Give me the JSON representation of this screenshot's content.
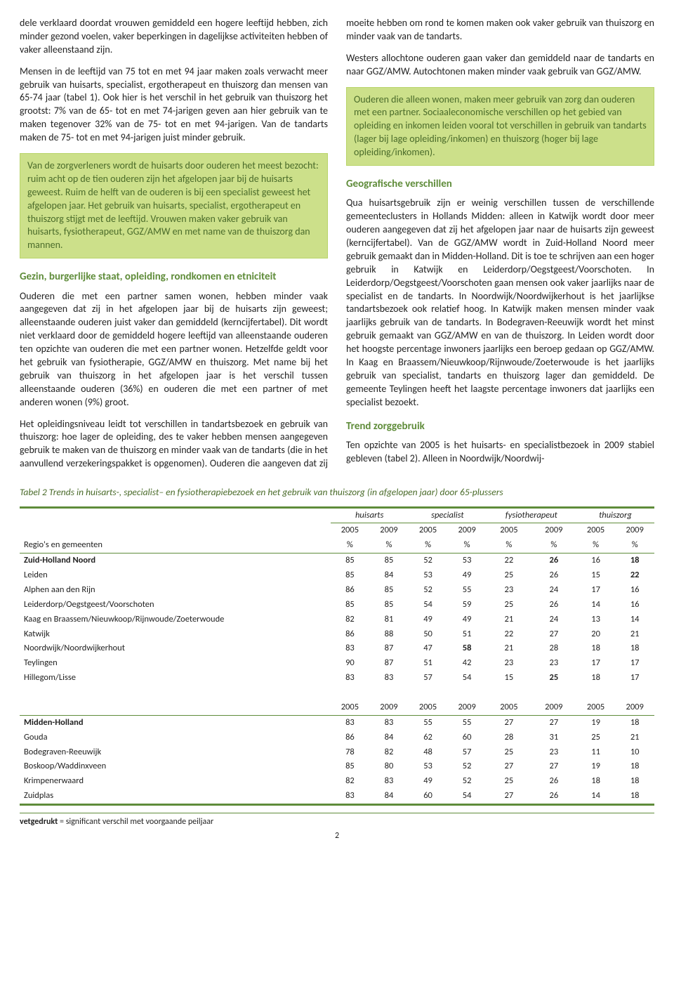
{
  "paragraphs": {
    "p0": "dele verklaard doordat vrouwen gemiddeld een hogere leeftijd hebben, zich minder gezond voelen, vaker beperkingen in dagelijkse activiteiten hebben of vaker alleenstaand zijn.",
    "p1": "Mensen in de leeftijd van 75 tot en met 94 jaar maken zoals verwacht meer gebruik van huisarts, specialist, ergotherapeut en thuiszorg dan mensen van 65-74 jaar (tabel 1). Ook hier is het verschil in het gebruik van thuiszorg het grootst: 7% van de 65- tot en met 74-jarigen geven aan hier gebruik van te maken tegenover 32% van de 75- tot en met 94-jarigen. Van de tandarts maken de 75- tot en met 94-jarigen juist minder gebruik.",
    "callout1": "Van de zorgverleners wordt de huisarts door ouderen het meest bezocht: ruim acht op de tien ouderen zijn het afgelopen jaar bij de huisarts geweest. Ruim de helft van de ouderen is bij een specialist geweest het afgelopen jaar. Het gebruik van huisarts, specialist, ergotherapeut en thuiszorg stijgt met de leeftijd. Vrouwen maken vaker gebruik van huisarts, fysiotherapeut, GGZ/AMW en met name van de thuiszorg dan mannen.",
    "h1": "Gezin, burgerlijke staat, opleiding, rondkomen en etniciteit",
    "p2": "Ouderen die met een partner samen wonen, hebben minder vaak aangegeven dat zij in het afgelopen jaar bij de huisarts zijn geweest; alleenstaande ouderen juist vaker dan gemiddeld (kerncijfertabel). Dit wordt niet verklaard door de gemiddeld hogere leeftijd van alleenstaande ouderen ten opzichte van ouderen die met een partner wonen. Hetzelfde geldt voor het gebruik van fysiotherapie, GGZ/AMW en thuiszorg. Met name bij het gebruik van thuiszorg in het afgelopen jaar is het verschil tussen alleenstaande ouderen (36%) en ouderen die met een partner of met anderen wonen (9%) groot.",
    "p3": "Het opleidingsniveau leidt tot verschillen in tandartsbezoek en gebruik van thuiszorg: hoe lager de opleiding, des te vaker hebben mensen aangegeven gebruik te maken van de thuiszorg en minder vaak van de tandarts (die in het aanvullend verzekeringspakket is opgenomen). Ouderen die aangeven dat zij moeite hebben om rond te komen maken ook vaker gebruik van thuiszorg en minder vaak van de tandarts.",
    "p4": "Westers allochtone ouderen gaan vaker dan gemiddeld naar de tandarts en naar GGZ/AMW. Autochtonen maken minder vaak gebruik van GGZ/AMW.",
    "callout2": "Ouderen die alleen wonen, maken meer gebruik van zorg dan ouderen met een partner. Sociaaleconomische verschillen op het gebied van opleiding en inkomen leiden vooral tot verschillen in gebruik van tandarts (lager bij lage opleiding/inkomen) en thuiszorg (hoger bij lage opleiding/inkomen).",
    "h2": "Geografische verschillen",
    "p5": "Qua huisartsgebruik zijn er weinig verschillen tussen de verschillende gemeenteclusters in Hollands Midden: alleen in Katwijk wordt door meer ouderen aangegeven dat zij het afgelopen jaar naar de huisarts zijn geweest (kerncijfertabel). Van de GGZ/AMW wordt in Zuid-Holland Noord meer gebruik gemaakt dan in Midden-Holland. Dit is toe te schrijven aan een hoger gebruik in Katwijk en Leiderdorp/Oegstgeest/Voorschoten. In Leiderdorp/Oegstgeest/Voorschoten gaan mensen ook vaker jaarlijks naar de specialist en de tandarts. In Noordwijk/Noordwijkerhout is het jaarlijkse tandartsbezoek ook relatief hoog. In Katwijk maken mensen minder vaak jaarlijks gebruik van de tandarts. In Bodegraven-Reeuwijk wordt het minst gebruik gemaakt van GGZ/AMW en van de thuiszorg. In Leiden wordt door het hoogste percentage inwoners jaarlijks een beroep gedaan op GGZ/AMW. In Kaag en Braassem/Nieuwkoop/Rijnwoude/Zoeterwoude is het jaarlijks gebruik van specialist, tandarts en thuiszorg lager dan gemiddeld. De gemeente Teylingen heeft het laagste percentage inwoners dat jaarlijks een specialist bezoekt.",
    "h3": "Trend zorggebruik",
    "p6": "Ten opzichte van 2005 is het huisarts- en specialistbezoek in 2009 stabiel gebleven (tabel 2). Alleen in Noordwijk/Noordwij-"
  },
  "table": {
    "caption": "Tabel 2  Trends in huisarts-, specialist– en fysiotherapiebezoek en het gebruik van thuiszorg  (in afgelopen jaar) door 65-plussers",
    "groups": [
      "huisarts",
      "specialist",
      "fysiotherapeut",
      "thuiszorg"
    ],
    "years": [
      "2005",
      "2009"
    ],
    "row_header": "Regio's en gemeenten",
    "pct": "%",
    "sections": [
      {
        "region": {
          "name": "Zuid-Holland Noord",
          "vals": [
            "85",
            "85",
            "52",
            "53",
            "22",
            "26",
            "16",
            "18"
          ],
          "bold": [
            false,
            false,
            false,
            false,
            false,
            true,
            false,
            true
          ]
        },
        "rows": [
          {
            "name": "Leiden",
            "vals": [
              "85",
              "84",
              "53",
              "49",
              "25",
              "26",
              "15",
              "22"
            ],
            "bold": [
              false,
              false,
              false,
              false,
              false,
              false,
              false,
              true
            ]
          },
          {
            "name": "Alphen aan den Rijn",
            "vals": [
              "86",
              "85",
              "52",
              "55",
              "23",
              "24",
              "17",
              "16"
            ],
            "bold": [
              false,
              false,
              false,
              false,
              false,
              false,
              false,
              false
            ]
          },
          {
            "name": "Leiderdorp/Oegstgeest/Voorschoten",
            "vals": [
              "85",
              "85",
              "54",
              "59",
              "25",
              "26",
              "14",
              "16"
            ],
            "bold": [
              false,
              false,
              false,
              false,
              false,
              false,
              false,
              false
            ]
          },
          {
            "name": "Kaag en Braassem/Nieuwkoop/Rijnwoude/Zoeterwoude",
            "vals": [
              "82",
              "81",
              "49",
              "49",
              "21",
              "24",
              "13",
              "14"
            ],
            "bold": [
              false,
              false,
              false,
              false,
              false,
              false,
              false,
              false
            ]
          },
          {
            "name": "Katwijk",
            "vals": [
              "86",
              "88",
              "50",
              "51",
              "22",
              "27",
              "20",
              "21"
            ],
            "bold": [
              false,
              false,
              false,
              false,
              false,
              false,
              false,
              false
            ]
          },
          {
            "name": "Noordwijk/Noordwijkerhout",
            "vals": [
              "83",
              "87",
              "47",
              "58",
              "21",
              "28",
              "18",
              "18"
            ],
            "bold": [
              false,
              false,
              false,
              true,
              false,
              false,
              false,
              false
            ]
          },
          {
            "name": "Teylingen",
            "vals": [
              "90",
              "87",
              "51",
              "42",
              "23",
              "23",
              "17",
              "17"
            ],
            "bold": [
              false,
              false,
              false,
              false,
              false,
              false,
              false,
              false
            ]
          },
          {
            "name": "Hillegom/Lisse",
            "vals": [
              "83",
              "83",
              "57",
              "54",
              "15",
              "25",
              "18",
              "17"
            ],
            "bold": [
              false,
              false,
              false,
              false,
              false,
              true,
              false,
              false
            ]
          }
        ]
      },
      {
        "region": {
          "name": "Midden-Holland",
          "vals": [
            "83",
            "83",
            "55",
            "55",
            "27",
            "27",
            "19",
            "18"
          ],
          "bold": [
            false,
            false,
            false,
            false,
            false,
            false,
            false,
            false
          ]
        },
        "rows": [
          {
            "name": "Gouda",
            "vals": [
              "86",
              "84",
              "62",
              "60",
              "28",
              "31",
              "25",
              "21"
            ],
            "bold": [
              false,
              false,
              false,
              false,
              false,
              false,
              false,
              false
            ]
          },
          {
            "name": "Bodegraven-Reeuwijk",
            "vals": [
              "78",
              "82",
              "48",
              "57",
              "25",
              "23",
              "11",
              "10"
            ],
            "bold": [
              false,
              false,
              false,
              false,
              false,
              false,
              false,
              false
            ]
          },
          {
            "name": "Boskoop/Waddinxveen",
            "vals": [
              "85",
              "80",
              "53",
              "52",
              "27",
              "27",
              "19",
              "18"
            ],
            "bold": [
              false,
              false,
              false,
              false,
              false,
              false,
              false,
              false
            ]
          },
          {
            "name": "Krimpenerwaard",
            "vals": [
              "82",
              "83",
              "49",
              "52",
              "25",
              "26",
              "18",
              "18"
            ],
            "bold": [
              false,
              false,
              false,
              false,
              false,
              false,
              false,
              false
            ]
          },
          {
            "name": "Zuidplas",
            "vals": [
              "83",
              "84",
              "60",
              "54",
              "27",
              "26",
              "14",
              "18"
            ],
            "bold": [
              false,
              false,
              false,
              false,
              false,
              false,
              false,
              false
            ]
          }
        ]
      }
    ],
    "footnote_bold": "vetgedrukt",
    "footnote_rest": " = significant verschil met voorgaande peiljaar"
  },
  "page_number": "2"
}
